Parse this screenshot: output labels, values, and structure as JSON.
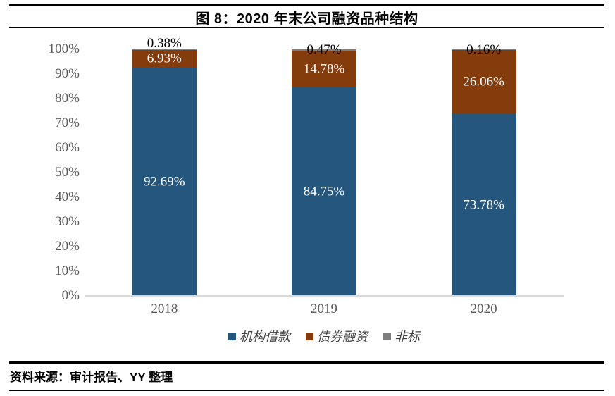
{
  "header": {
    "title": "图 8：2020 年末公司融资品种结构"
  },
  "footer": {
    "source": "资料来源：审计报告、YY 整理"
  },
  "chart_data": {
    "type": "bar",
    "stacked": true,
    "percent": true,
    "title": "图 8：2020 年末公司融资品种结构",
    "categories": [
      "2018",
      "2019",
      "2020"
    ],
    "series": [
      {
        "name": "机构借款",
        "color": "#24567E",
        "label_color": "#FFFFFF",
        "label_placement": "inside",
        "values": [
          92.69,
          84.75,
          73.78
        ]
      },
      {
        "name": "债券融资",
        "color": "#843C0C",
        "label_color": "#FFFFFF",
        "label_placement": "inside",
        "values": [
          6.93,
          14.78,
          26.06
        ]
      },
      {
        "name": "非标",
        "color": "#7F7F7F",
        "label_color": "#000000",
        "label_placement": "outside-top",
        "values": [
          0.38,
          0.47,
          0.16
        ]
      }
    ],
    "data_labels": {
      "2018": {
        "机构借款": "92.69%",
        "债券融资": "6.93%",
        "非标": "0.38%"
      },
      "2019": {
        "机构借款": "84.75%",
        "债券融资": "14.78%",
        "非标": "0.47%"
      },
      "2020": {
        "机构借款": "73.78%",
        "债券融资": "26.06%",
        "非标": "0.16%"
      }
    },
    "ylabel": "",
    "xlabel": "",
    "ylim": [
      0,
      100
    ],
    "yticks": [
      "0%",
      "10%",
      "20%",
      "30%",
      "40%",
      "50%",
      "60%",
      "70%",
      "80%",
      "90%",
      "100%"
    ],
    "gridlines": false,
    "legend_position": "bottom",
    "axis_line_color": "#D9D9D9",
    "tick_label_color": "#595959"
  }
}
